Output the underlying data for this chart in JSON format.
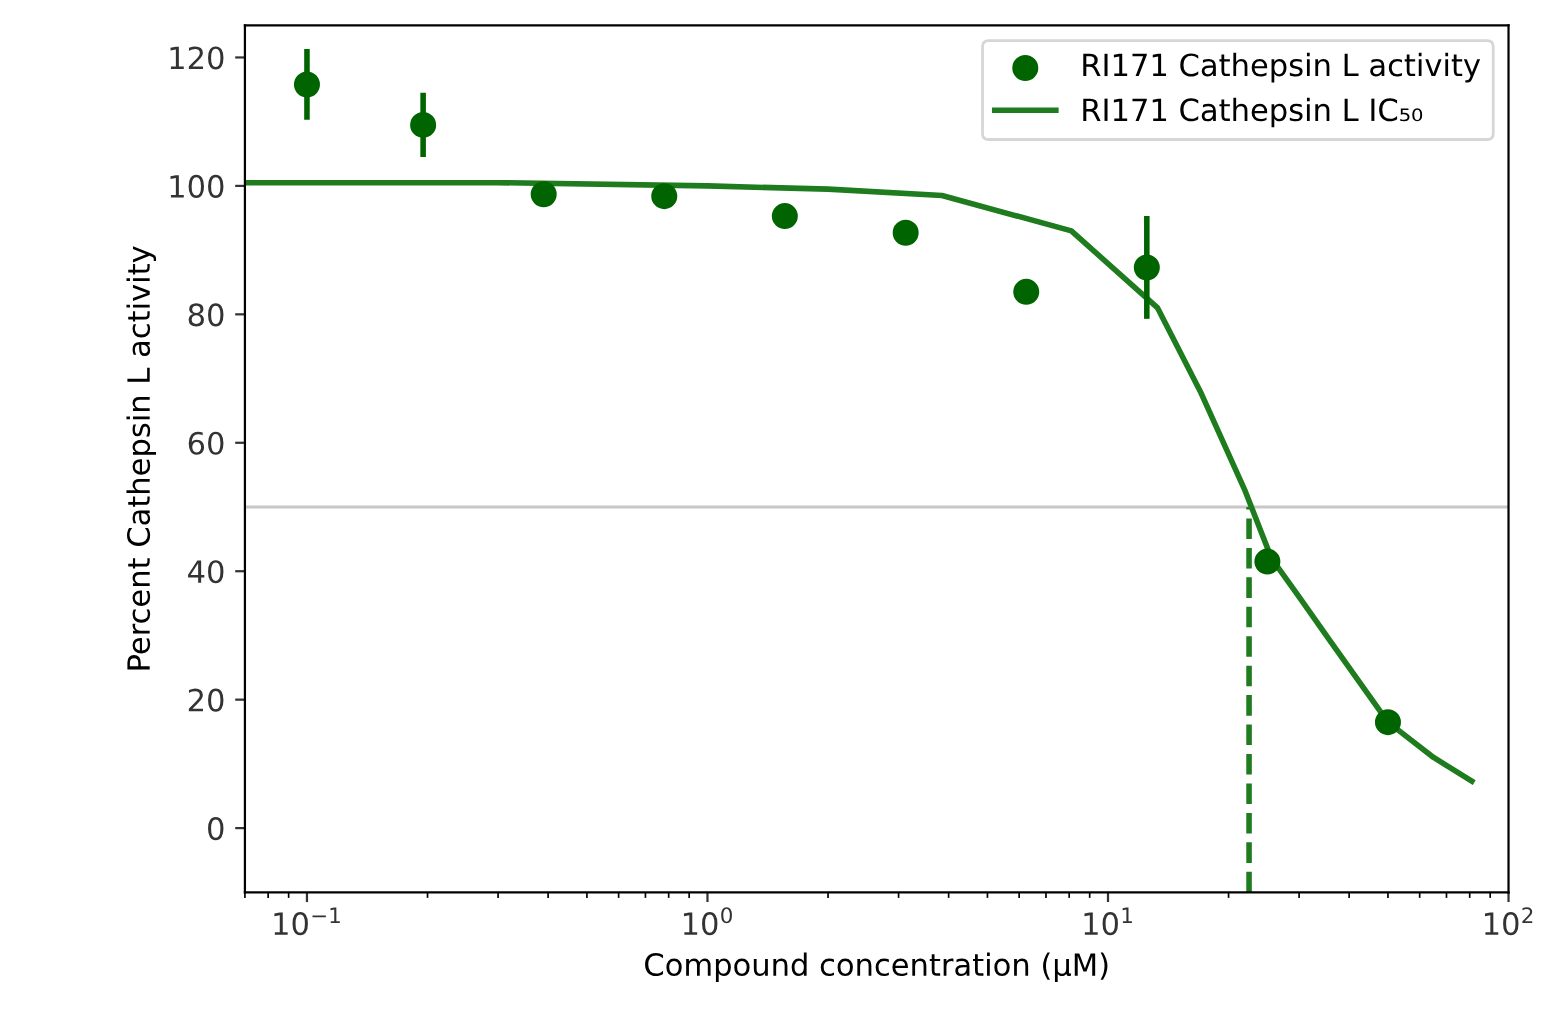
{
  "chart_data": {
    "type": "scatter",
    "xlabel": "Compound concentration (µM)",
    "ylabel": "Percent Cathepsin L activity",
    "log": "x",
    "xlim": [
      0.07,
      100
    ],
    "ylim": [
      -10,
      125
    ],
    "xticks": [
      {
        "value": 0.1,
        "label": "10$^{−1}$"
      },
      {
        "value": 1,
        "label": "10$^{0}$"
      },
      {
        "value": 10,
        "label": "10$^{1}$"
      },
      {
        "value": 100,
        "label": "10$^{2}$"
      }
    ],
    "yticks": [
      0,
      20,
      40,
      60,
      80,
      100,
      120
    ],
    "grid": false,
    "legend": "top right",
    "series": [
      {
        "name": "RI171 Cathepsin L activity",
        "marker": "circle",
        "color": "#006400",
        "x": [
          0.1,
          0.195,
          0.39,
          0.78,
          1.56,
          3.125,
          6.25,
          12.5,
          25,
          50
        ],
        "values": [
          115.8,
          109.5,
          98.7,
          98.4,
          95.3,
          92.7,
          83.5,
          87.3,
          41.5,
          16.5
        ],
        "errors": [
          5.5,
          5,
          null,
          null,
          null,
          null,
          null,
          8,
          null,
          null
        ]
      },
      {
        "name": "RI171 Cathepsin L IC₅₀",
        "type": "line",
        "line_style": "solid",
        "color": "#1e7b1e",
        "x": [
          0.07,
          0.3,
          1,
          2,
          3.85,
          8.1,
          13.3,
          17,
          22,
          25.6,
          30,
          36,
          50,
          65,
          81
        ],
        "values": [
          100.5,
          100.5,
          100,
          99.5,
          98.5,
          93,
          81,
          68,
          52.5,
          42,
          36,
          29,
          16.5,
          11,
          7.3
        ]
      },
      {
        "type": "line",
        "line_style": "dashed",
        "color": "#1e7b1e",
        "x": [
          22.5,
          22.5
        ],
        "values": [
          -10,
          50
        ]
      }
    ],
    "ref_lines": [
      {
        "axis": "y",
        "value": 50,
        "color": "#c8c8c8"
      }
    ]
  }
}
